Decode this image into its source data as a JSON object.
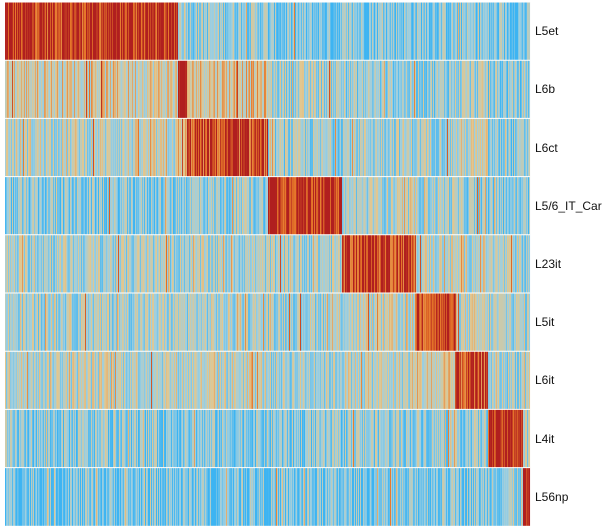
{
  "chart_data": {
    "type": "heatmap",
    "title": "",
    "xlabel": "",
    "ylabel": "",
    "rows": [
      "L5et",
      "L6b",
      "L6ct",
      "L5/6_IT_Car",
      "L23it",
      "L5it",
      "L6it",
      "L4it",
      "L56np"
    ],
    "column_groups": [
      "L5et",
      "L6b",
      "L6ct",
      "L5/6_IT_Car",
      "L23it",
      "L5it",
      "L6it",
      "L4it",
      "L56np"
    ],
    "group_relative_widths": [
      173,
      9,
      81,
      74,
      73,
      40,
      33,
      35,
      7
    ],
    "mean_score_by_row_and_group": [
      [
        0.92,
        0.35,
        0.25,
        0.15,
        0.2,
        0.2,
        0.2,
        0.15,
        0.15
      ],
      [
        0.45,
        0.95,
        0.5,
        0.3,
        0.25,
        0.25,
        0.3,
        0.2,
        0.25
      ],
      [
        0.35,
        0.5,
        0.85,
        0.25,
        0.3,
        0.3,
        0.35,
        0.2,
        0.2
      ],
      [
        0.2,
        0.25,
        0.25,
        0.95,
        0.3,
        0.3,
        0.25,
        0.2,
        0.2
      ],
      [
        0.3,
        0.3,
        0.3,
        0.3,
        0.9,
        0.35,
        0.35,
        0.3,
        0.25
      ],
      [
        0.3,
        0.3,
        0.3,
        0.3,
        0.35,
        0.88,
        0.35,
        0.3,
        0.3
      ],
      [
        0.35,
        0.35,
        0.35,
        0.3,
        0.35,
        0.4,
        0.85,
        0.3,
        0.3
      ],
      [
        0.2,
        0.2,
        0.2,
        0.2,
        0.25,
        0.25,
        0.25,
        0.95,
        0.3
      ],
      [
        0.15,
        0.15,
        0.15,
        0.15,
        0.15,
        0.2,
        0.2,
        0.25,
        0.95
      ]
    ],
    "color_scale": [
      "#3db4f2",
      "#9ecfe0",
      "#e2c78f",
      "#e6772a",
      "#b01f1f"
    ],
    "legend": "none"
  }
}
